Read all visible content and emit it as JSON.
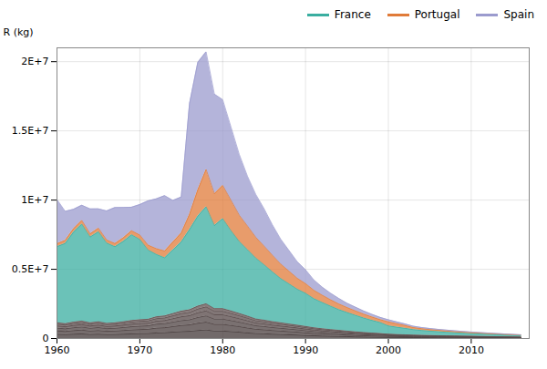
{
  "chart_data": {
    "type": "area",
    "stacked": true,
    "ylabel": "R (kg)",
    "x": [
      1960,
      1961,
      1962,
      1963,
      1964,
      1965,
      1966,
      1967,
      1968,
      1969,
      1970,
      1971,
      1972,
      1973,
      1974,
      1975,
      1976,
      1977,
      1978,
      1979,
      1980,
      1981,
      1982,
      1983,
      1984,
      1985,
      1986,
      1987,
      1988,
      1989,
      1990,
      1991,
      1992,
      1993,
      1994,
      1995,
      1996,
      1997,
      1998,
      1999,
      2000,
      2001,
      2002,
      2003,
      2004,
      2005,
      2006,
      2007,
      2008,
      2009,
      2010,
      2011,
      2012,
      2013,
      2014,
      2015,
      2016
    ],
    "series": [
      {
        "name": null,
        "color": "#423737",
        "values": [
          300000,
          280000,
          310000,
          330000,
          290000,
          310000,
          280000,
          290000,
          310000,
          330000,
          350000,
          360000,
          400000,
          420000,
          460000,
          500000,
          520000,
          580000,
          620000,
          540000,
          540000,
          500000,
          460000,
          400000,
          360000,
          340000,
          310000,
          290000,
          270000,
          250000,
          220000,
          200000,
          180000,
          165000,
          150000,
          135000,
          120000,
          110000,
          100000,
          90000,
          80000,
          75000,
          70000,
          65000,
          60000,
          58000,
          55000,
          52000,
          50000,
          47000,
          45000,
          42000,
          40000,
          37000,
          35000,
          32000,
          30000
        ]
      },
      {
        "name": null,
        "color": "#483c3c",
        "values": [
          250000,
          230000,
          260000,
          280000,
          250000,
          270000,
          240000,
          250000,
          270000,
          290000,
          300000,
          310000,
          350000,
          360000,
          400000,
          440000,
          460000,
          520000,
          560000,
          480000,
          480000,
          440000,
          400000,
          360000,
          310000,
          290000,
          270000,
          250000,
          230000,
          210000,
          190000,
          170000,
          155000,
          140000,
          130000,
          115000,
          105000,
          95000,
          85000,
          78000,
          68000,
          62000,
          57000,
          52000,
          48000,
          46000,
          43000,
          41000,
          39000,
          37000,
          35000,
          33000,
          31000,
          29000,
          27000,
          25000,
          23000
        ]
      },
      {
        "name": null,
        "color": "#4e4141",
        "values": [
          200000,
          190000,
          210000,
          220000,
          200000,
          215000,
          195000,
          200000,
          215000,
          230000,
          240000,
          245000,
          280000,
          290000,
          320000,
          350000,
          370000,
          420000,
          450000,
          385000,
          385000,
          355000,
          320000,
          290000,
          250000,
          235000,
          215000,
          200000,
          185000,
          170000,
          155000,
          138000,
          125000,
          115000,
          105000,
          95000,
          86000,
          78000,
          70000,
          63000,
          55000,
          50000,
          46000,
          42000,
          39000,
          37000,
          35000,
          33000,
          31000,
          29000,
          27000,
          26000,
          24000,
          22000,
          20000,
          18000,
          16000
        ]
      },
      {
        "name": null,
        "color": "#544646",
        "values": [
          160000,
          150000,
          165000,
          175000,
          160000,
          170000,
          155000,
          160000,
          170000,
          182000,
          190000,
          195000,
          222000,
          230000,
          255000,
          280000,
          296000,
          336000,
          360000,
          308000,
          308000,
          284000,
          256000,
          232000,
          200000,
          188000,
          172000,
          160000,
          148000,
          136000,
          124000,
          110000,
          100000,
          92000,
          84000,
          76000,
          69000,
          62000,
          56000,
          50000,
          44000,
          40000,
          37000,
          34000,
          31000,
          30000,
          28000,
          26000,
          25000,
          23000,
          22000,
          20000,
          19000,
          17000,
          16000,
          14000,
          13000
        ]
      },
      {
        "name": null,
        "color": "#5a4b4b",
        "values": [
          130000,
          122000,
          134000,
          142000,
          130000,
          138000,
          126000,
          130000,
          138000,
          148000,
          154000,
          158000,
          180000,
          187000,
          207000,
          227000,
          240000,
          273000,
          292000,
          250000,
          250000,
          230000,
          208000,
          188000,
          162000,
          152000,
          140000,
          130000,
          120000,
          110000,
          100000,
          89000,
          81000,
          74000,
          68000,
          62000,
          56000,
          50000,
          45000,
          41000,
          36000,
          33000,
          30000,
          27000,
          25000,
          24000,
          22000,
          21000,
          20000,
          19000,
          18000,
          16000,
          15000,
          14000,
          13000,
          12000,
          11000
        ]
      },
      {
        "name": null,
        "color": "#605050",
        "values": [
          100000,
          94000,
          103000,
          110000,
          100000,
          106000,
          97000,
          100000,
          106000,
          114000,
          119000,
          122000,
          138000,
          143000,
          159000,
          175000,
          185000,
          210000,
          225000,
          192000,
          192000,
          177000,
          160000,
          144000,
          125000,
          117000,
          108000,
          100000,
          92000,
          84000,
          77000,
          68000,
          62000,
          57000,
          53000,
          47000,
          43000,
          39000,
          35000,
          32000,
          27000,
          25000,
          23000,
          21000,
          20000,
          19000,
          17000,
          16000,
          15000,
          14000,
          14000,
          13000,
          12000,
          11000,
          10000,
          9000,
          8000
        ]
      },
      {
        "name": "France",
        "color": "#3aaea0",
        "values": [
          5500000,
          5800000,
          6500000,
          7000000,
          6200000,
          6500000,
          5800000,
          5500000,
          5800000,
          6200000,
          5800000,
          5000000,
          4500000,
          4200000,
          4600000,
          5000000,
          5800000,
          6500000,
          7000000,
          6000000,
          6500000,
          5800000,
          5200000,
          4800000,
          4400000,
          4000000,
          3600000,
          3200000,
          2900000,
          2600000,
          2400000,
          2100000,
          1900000,
          1700000,
          1500000,
          1350000,
          1200000,
          1050000,
          920000,
          800000,
          600000,
          530000,
          470000,
          400000,
          360000,
          320000,
          290000,
          260000,
          235000,
          210000,
          190000,
          175000,
          160000,
          145000,
          132000,
          120000,
          108000
        ]
      },
      {
        "name": "Portugal",
        "color": "#e07b39",
        "values": [
          200000,
          220000,
          250000,
          270000,
          230000,
          260000,
          220000,
          230000,
          260000,
          290000,
          320000,
          350000,
          420000,
          490000,
          570000,
          650000,
          1100000,
          1900000,
          2700000,
          2300000,
          2400000,
          2200000,
          1900000,
          1700000,
          1500000,
          1350000,
          1200000,
          1050000,
          920000,
          790000,
          700000,
          610000,
          530000,
          460000,
          410000,
          360000,
          320000,
          280000,
          245000,
          210000,
          290000,
          250000,
          210000,
          150000,
          130000,
          115000,
          105000,
          95000,
          85000,
          78000,
          70000,
          62000,
          56000,
          50000,
          45000,
          40000,
          36000
        ]
      },
      {
        "name": "Spain",
        "color": "#9b9bce",
        "values": [
          3200000,
          2100000,
          1400000,
          1100000,
          1800000,
          1400000,
          2100000,
          2600000,
          2200000,
          1700000,
          2200000,
          3200000,
          3600000,
          4000000,
          3000000,
          2600000,
          8000000,
          9200000,
          8500000,
          7200000,
          6200000,
          5300000,
          4400000,
          3600000,
          3100000,
          2700000,
          2200000,
          1800000,
          1500000,
          1200000,
          1000000,
          750000,
          580000,
          480000,
          400000,
          310000,
          270000,
          230000,
          195000,
          160000,
          155000,
          135000,
          110000,
          95000,
          80000,
          73000,
          66000,
          60000,
          55000,
          50000,
          46000,
          42000,
          38000,
          34000,
          31000,
          28000,
          25000
        ]
      }
    ],
    "xlim": [
      1960,
      2017
    ],
    "xticks": [
      1960,
      1970,
      1980,
      1990,
      2000,
      2010
    ],
    "ylim": [
      0,
      21000000
    ],
    "yticks": [
      0,
      {
        "value": 5000000,
        "label": "0.5E+7"
      },
      {
        "value": 10000000,
        "label": "1E+7"
      },
      {
        "value": 15000000,
        "label": "1.5E+7"
      },
      {
        "value": 20000000,
        "label": "2E+7"
      }
    ],
    "grid": true,
    "legend": "upper right"
  }
}
